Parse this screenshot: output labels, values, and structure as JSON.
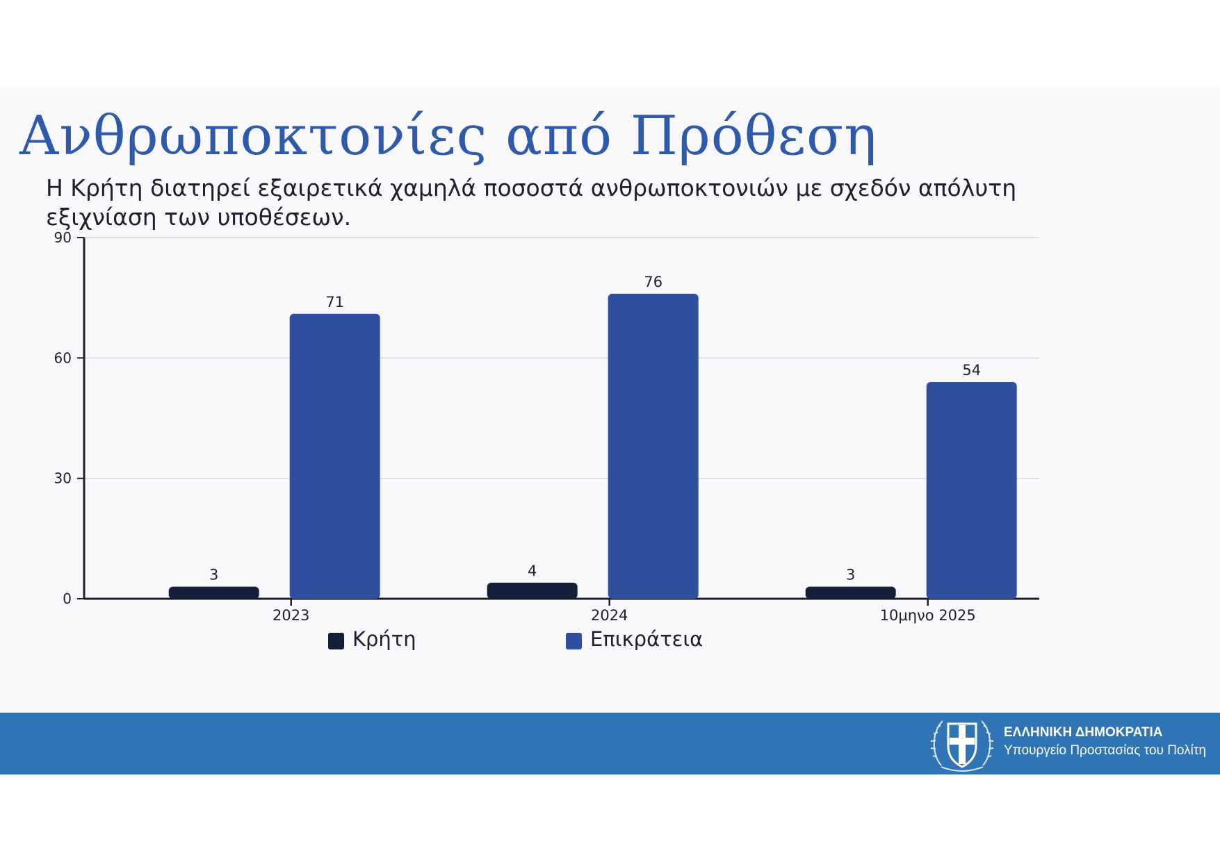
{
  "slide": {
    "title": "Ανθρωποκτονίες από Πρόθεση",
    "subtitle": "Η Κρήτη διατηρεί εξαιρετικά χαμηλά ποσοστά ανθρωποκτονιών με σχεδόν απόλυτη εξιχνίαση των υποθέσεων."
  },
  "footer": {
    "line1": "ΕΛΛΗΝΙΚΗ ΔΗΜΟΚΡΑΤΙΑ",
    "line2": "Υπουργείο Προστασίας του Πολίτη"
  },
  "chart_data": {
    "type": "bar",
    "categories": [
      "2023",
      "2024",
      "10μηνο 2025"
    ],
    "series": [
      {
        "name": "Κρήτη",
        "values": [
          3,
          4,
          3
        ],
        "color": "#121e3a"
      },
      {
        "name": "Επικράτεια",
        "values": [
          71,
          76,
          54
        ],
        "color": "#2d4f9e"
      }
    ],
    "title": "",
    "xlabel": "",
    "ylabel": "",
    "ylim": [
      0,
      90
    ],
    "yticks": [
      0,
      30,
      60,
      90
    ],
    "grid": true,
    "legend": "bottom",
    "data_labels": true
  }
}
